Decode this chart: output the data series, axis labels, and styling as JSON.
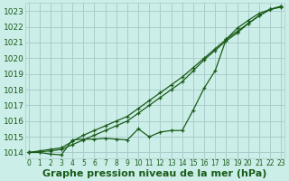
{
  "bg_color": "#cceee8",
  "grid_color": "#aacccc",
  "line_color": "#1a5c1a",
  "xlabel": "Graphe pression niveau de la mer (hPa)",
  "xlabel_fontsize": 8,
  "xtick_fontsize": 5.5,
  "ytick_fontsize": 6.5,
  "ylim": [
    1013.6,
    1023.5
  ],
  "xlim": [
    -0.3,
    23.3
  ],
  "yticks": [
    1014,
    1015,
    1016,
    1017,
    1018,
    1019,
    1020,
    1021,
    1022,
    1023
  ],
  "xticks": [
    0,
    1,
    2,
    3,
    4,
    5,
    6,
    7,
    8,
    9,
    10,
    11,
    12,
    13,
    14,
    15,
    16,
    17,
    18,
    19,
    20,
    21,
    22,
    23
  ],
  "line_straight_y": [
    1014.0,
    1014.1,
    1014.2,
    1014.3,
    1014.7,
    1015.1,
    1015.4,
    1015.7,
    1016.0,
    1016.3,
    1016.8,
    1017.3,
    1017.8,
    1018.3,
    1018.8,
    1019.4,
    1020.0,
    1020.6,
    1021.2,
    1021.7,
    1022.2,
    1022.7,
    1023.1,
    1023.3
  ],
  "line_straight2_y": [
    1014.0,
    1014.05,
    1014.1,
    1014.2,
    1014.5,
    1014.8,
    1015.1,
    1015.4,
    1015.7,
    1016.0,
    1016.5,
    1017.0,
    1017.5,
    1018.0,
    1018.5,
    1019.2,
    1019.9,
    1020.5,
    1021.1,
    1021.6,
    1022.2,
    1022.7,
    1023.1,
    1023.3
  ],
  "line_irregular_y": [
    1014.0,
    1014.0,
    1013.9,
    1013.85,
    1014.8,
    1014.85,
    1014.85,
    1014.9,
    1014.85,
    1014.8,
    1015.5,
    1015.0,
    1015.3,
    1015.4,
    1015.4,
    1016.7,
    1018.1,
    1019.2,
    1021.2,
    1021.9,
    1022.4,
    1022.85,
    1023.1,
    1023.25
  ]
}
